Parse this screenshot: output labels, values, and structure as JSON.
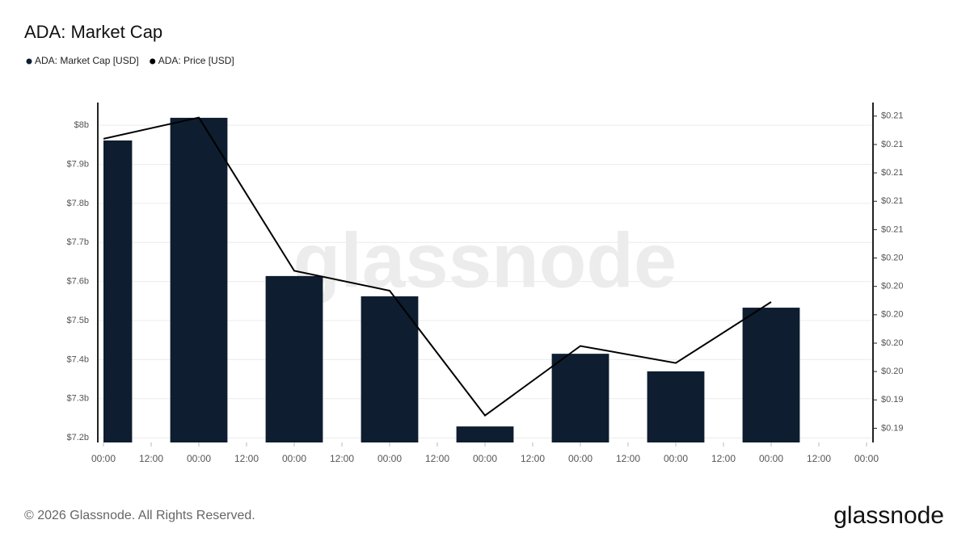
{
  "chart_data": {
    "type": "bar",
    "title": "ADA: Market Cap",
    "x": [
      0,
      24,
      48,
      72,
      96,
      120,
      144,
      168
    ],
    "xlim": [
      0,
      192
    ],
    "xticks": [
      {
        "value": 0,
        "label": "00:00"
      },
      {
        "value": 12,
        "label": "12:00"
      },
      {
        "value": 24,
        "label": "00:00"
      },
      {
        "value": 36,
        "label": "12:00"
      },
      {
        "value": 48,
        "label": "00:00"
      },
      {
        "value": 60,
        "label": "12:00"
      },
      {
        "value": 72,
        "label": "00:00"
      },
      {
        "value": 84,
        "label": "12:00"
      },
      {
        "value": 96,
        "label": "00:00"
      },
      {
        "value": 108,
        "label": "12:00"
      },
      {
        "value": 120,
        "label": "00:00"
      },
      {
        "value": 132,
        "label": "12:00"
      },
      {
        "value": 144,
        "label": "00:00"
      },
      {
        "value": 156,
        "label": "12:00"
      },
      {
        "value": 168,
        "label": "00:00"
      },
      {
        "value": 180,
        "label": "12:00"
      },
      {
        "value": 192,
        "label": "00:00"
      }
    ],
    "series": [
      {
        "name": "ADA: Market Cap [USD]",
        "type": "bar",
        "color": "#0e1d2f",
        "values": [
          7961000000,
          8019000000,
          7614000000,
          7562000000,
          7229000000,
          7415000000,
          7370000000,
          7533000000
        ]
      },
      {
        "name": "ADA: Price [USD]",
        "type": "line",
        "axis": "y2",
        "color": "#000000",
        "values": [
          0.2124,
          0.2139,
          0.2031,
          0.2017,
          0.1929,
          0.1978,
          0.1966,
          0.2009
        ]
      }
    ],
    "ylim": [
      7188000000,
      8056000000
    ],
    "yticks": [
      {
        "value": 7200000000,
        "label": "$7.2b"
      },
      {
        "value": 7300000000,
        "label": "$7.3b"
      },
      {
        "value": 7400000000,
        "label": "$7.4b"
      },
      {
        "value": 7500000000,
        "label": "$7.5b"
      },
      {
        "value": 7600000000,
        "label": "$7.6b"
      },
      {
        "value": 7700000000,
        "label": "$7.7b"
      },
      {
        "value": 7800000000,
        "label": "$7.8b"
      },
      {
        "value": 7900000000,
        "label": "$7.9b"
      },
      {
        "value": 8000000000,
        "label": "$8b"
      }
    ],
    "y2lim": [
      0.191,
      0.2149
    ],
    "y2ticks": [
      {
        "value": 0.192,
        "label": "$0.19"
      },
      {
        "value": 0.194,
        "label": "$0.19"
      },
      {
        "value": 0.196,
        "label": "$0.20"
      },
      {
        "value": 0.198,
        "label": "$0.20"
      },
      {
        "value": 0.2,
        "label": "$0.20"
      },
      {
        "value": 0.202,
        "label": "$0.20"
      },
      {
        "value": 0.204,
        "label": "$0.20"
      },
      {
        "value": 0.206,
        "label": "$0.21"
      },
      {
        "value": 0.208,
        "label": "$0.21"
      },
      {
        "value": 0.21,
        "label": "$0.21"
      },
      {
        "value": 0.212,
        "label": "$0.21"
      },
      {
        "value": 0.214,
        "label": "$0.21"
      }
    ],
    "grid": true,
    "watermark": "glassnode",
    "footer": "© 2026 Glassnode. All Rights Reserved.",
    "logo": "glassnode"
  }
}
